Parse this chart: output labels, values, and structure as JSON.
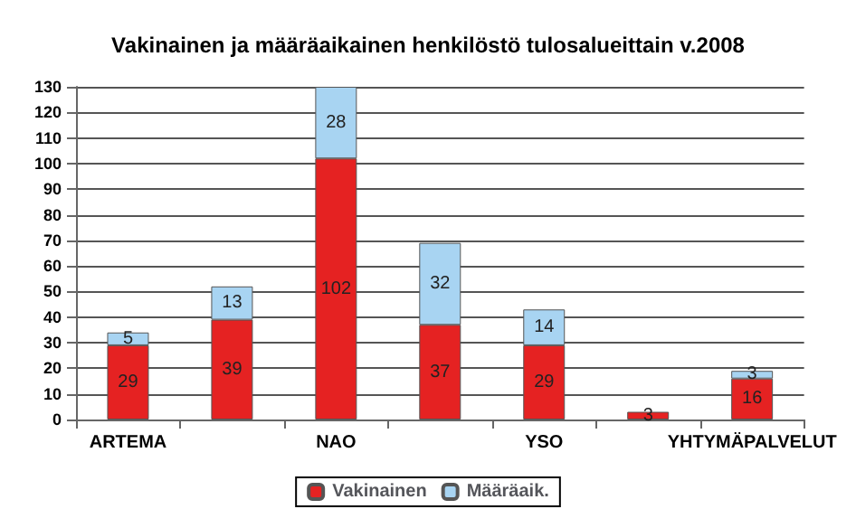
{
  "chart_data": {
    "type": "bar",
    "title": "Vakinainen ja määräaikainen henkilöstö tulosalueittain v.2008",
    "categories": [
      "ARTEMA",
      null,
      "NAO",
      null,
      "YSO",
      null,
      "YHTYMÄPALVELUT"
    ],
    "stacked": true,
    "series": [
      {
        "name": "Vakinainen",
        "color": "#e52222",
        "values": [
          29,
          39,
          102,
          37,
          29,
          3,
          16
        ]
      },
      {
        "name": "Määräaik.",
        "color": "#a8d4f2",
        "values": [
          5,
          13,
          28,
          32,
          14,
          null,
          3
        ]
      }
    ],
    "ylim": [
      0,
      130
    ],
    "yticks": [
      0,
      10,
      20,
      30,
      40,
      50,
      60,
      70,
      80,
      90,
      100,
      110,
      120,
      130
    ],
    "grid": "y",
    "legend": "bottom",
    "data_labels": true
  }
}
